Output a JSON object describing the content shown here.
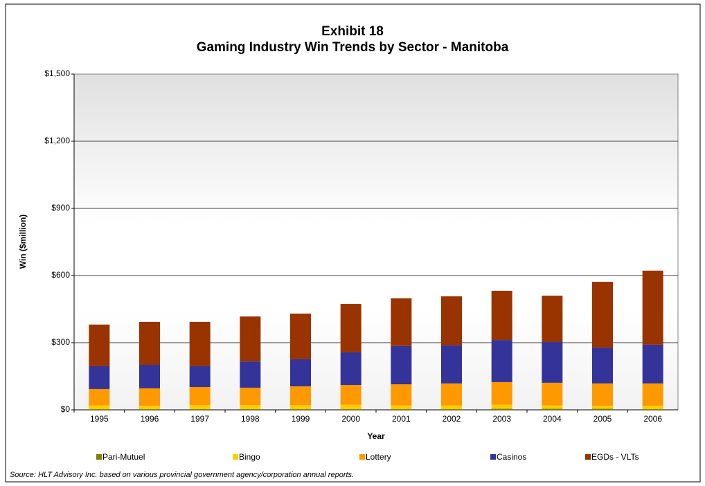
{
  "chart_data": {
    "type": "stacked_bar",
    "title": "Exhibit 18",
    "subtitle": "Gaming Industry Win Trends by Sector - Manitoba",
    "x_label": "Year",
    "y_label": "Win ($million)",
    "source": "Source: HLT Advisory Inc. based on various provincial government agency/corporation annual reports.",
    "categories": [
      "1995",
      "1996",
      "1997",
      "1998",
      "1999",
      "2000",
      "2001",
      "2002",
      "2003",
      "2004",
      "2005",
      "2006"
    ],
    "series": [
      {
        "name": "Pari-Mutuel",
        "color": "#808000",
        "values": [
          3,
          3,
          3,
          3,
          3,
          3,
          3,
          3,
          5,
          5,
          5,
          3
        ]
      },
      {
        "name": "Bingo",
        "color": "#ffcc00",
        "values": [
          17,
          15,
          18,
          18,
          18,
          20,
          17,
          17,
          18,
          15,
          13,
          15
        ]
      },
      {
        "name": "Lottery",
        "color": "#ff9900",
        "values": [
          73,
          78,
          81,
          78,
          84,
          88,
          94,
          98,
          101,
          101,
          100,
          100
        ]
      },
      {
        "name": "Casinos",
        "color": "#333399",
        "values": [
          102,
          105,
          93,
          117,
          121,
          146,
          171,
          170,
          188,
          182,
          160,
          173
        ]
      },
      {
        "name": "EGDs - VLTs",
        "color": "#993300",
        "values": [
          186,
          192,
          198,
          201,
          204,
          216,
          213,
          219,
          220,
          207,
          294,
          331
        ]
      }
    ],
    "ylim": [
      0,
      1500
    ],
    "yticks": [
      {
        "value": 0,
        "label": "$0"
      },
      {
        "value": 300,
        "label": "$300"
      },
      {
        "value": 600,
        "label": "$600"
      },
      {
        "value": 900,
        "label": "$900"
      },
      {
        "value": 1200,
        "label": "$1,200"
      },
      {
        "value": 1500,
        "label": "$1,500"
      }
    ],
    "grid": true,
    "legend": "bottom"
  }
}
